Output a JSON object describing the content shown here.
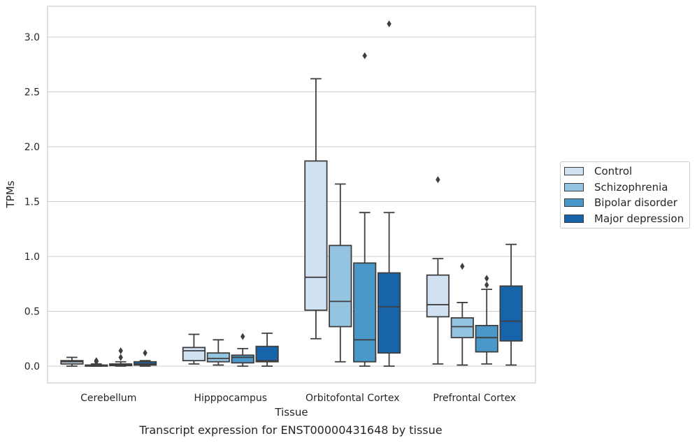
{
  "chart_data": {
    "type": "box",
    "caption": "Transcript expression for ENST00000431648 by tissue",
    "xlabel": "Tissue",
    "ylabel": "TPMs",
    "ylim": [
      -0.15,
      3.3
    ],
    "yticks": [
      "0.0",
      "0.5",
      "1.0",
      "1.5",
      "2.0",
      "2.5",
      "3.0"
    ],
    "grid": true,
    "legend_position": "right",
    "categories": [
      "Cerebellum",
      "Hipppocampus",
      "Orbitofontal Cortex",
      "Prefrontal Cortex"
    ],
    "series": [
      {
        "name": "Control",
        "color": "#d0e1f2",
        "boxes": [
          {
            "whislo": 0.0,
            "q1": 0.02,
            "med": 0.04,
            "q3": 0.05,
            "whishi": 0.08,
            "fliers": []
          },
          {
            "whislo": 0.02,
            "q1": 0.05,
            "med": 0.14,
            "q3": 0.17,
            "whishi": 0.29,
            "fliers": []
          },
          {
            "whislo": 0.25,
            "q1": 0.51,
            "med": 0.81,
            "q3": 1.87,
            "whishi": 2.62,
            "fliers": []
          },
          {
            "whislo": 0.02,
            "q1": 0.45,
            "med": 0.56,
            "q3": 0.83,
            "whishi": 0.98,
            "fliers": [
              1.7
            ]
          }
        ]
      },
      {
        "name": "Schizophrenia",
        "color": "#94c4df",
        "boxes": [
          {
            "whislo": 0.0,
            "q1": 0.0,
            "med": 0.005,
            "q3": 0.01,
            "whishi": 0.02,
            "fliers": [
              0.04,
              0.05
            ]
          },
          {
            "whislo": 0.01,
            "q1": 0.04,
            "med": 0.07,
            "q3": 0.12,
            "whishi": 0.24,
            "fliers": []
          },
          {
            "whislo": 0.04,
            "q1": 0.36,
            "med": 0.59,
            "q3": 1.1,
            "whishi": 1.66,
            "fliers": []
          },
          {
            "whislo": 0.01,
            "q1": 0.26,
            "med": 0.36,
            "q3": 0.44,
            "whishi": 0.58,
            "fliers": [
              0.91
            ]
          }
        ]
      },
      {
        "name": "Bipolar disorder",
        "color": "#4a98c9",
        "boxes": [
          {
            "whislo": 0.0,
            "q1": 0.005,
            "med": 0.01,
            "q3": 0.02,
            "whishi": 0.04,
            "fliers": [
              0.08,
              0.14
            ]
          },
          {
            "whislo": 0.0,
            "q1": 0.03,
            "med": 0.08,
            "q3": 0.1,
            "whishi": 0.16,
            "fliers": [
              0.27
            ]
          },
          {
            "whislo": 0.0,
            "q1": 0.04,
            "med": 0.24,
            "q3": 0.94,
            "whishi": 1.4,
            "fliers": [
              2.83
            ]
          },
          {
            "whislo": 0.02,
            "q1": 0.13,
            "med": 0.26,
            "q3": 0.37,
            "whishi": 0.7,
            "fliers": [
              0.74,
              0.8
            ]
          }
        ]
      },
      {
        "name": "Major depression",
        "color": "#1764ab",
        "boxes": [
          {
            "whislo": 0.0,
            "q1": 0.01,
            "med": 0.02,
            "q3": 0.04,
            "whishi": 0.05,
            "fliers": [
              0.12
            ]
          },
          {
            "whislo": 0.0,
            "q1": 0.04,
            "med": 0.05,
            "q3": 0.18,
            "whishi": 0.3,
            "fliers": []
          },
          {
            "whislo": 0.0,
            "q1": 0.12,
            "med": 0.54,
            "q3": 0.85,
            "whishi": 1.4,
            "fliers": [
              3.12
            ]
          },
          {
            "whislo": 0.01,
            "q1": 0.23,
            "med": 0.41,
            "q3": 0.73,
            "whishi": 1.11,
            "fliers": []
          }
        ]
      }
    ]
  }
}
